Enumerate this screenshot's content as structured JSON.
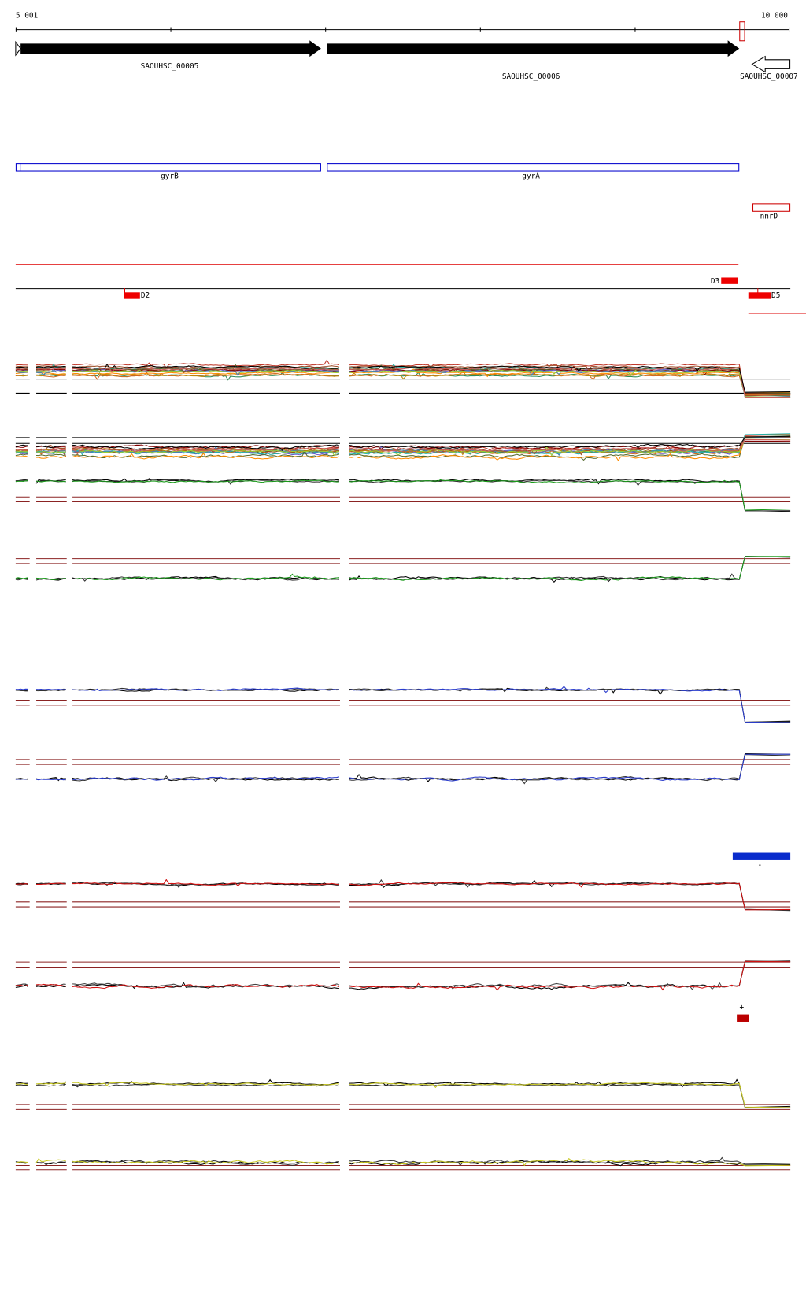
{
  "ruler": {
    "start": "5 001",
    "end": "10 000"
  },
  "genes": [
    {
      "label": "SAOUHSC_00005"
    },
    {
      "label": "SAOUHSC_00006"
    },
    {
      "label": "SAOUHSC_00007"
    }
  ],
  "names": [
    {
      "label": "gyrB"
    },
    {
      "label": "gyrA"
    },
    {
      "label": "nnrD"
    }
  ],
  "features": [
    {
      "label": "D2"
    },
    {
      "label": "D3"
    },
    {
      "label": "D5"
    }
  ],
  "strands": {
    "minus": "-",
    "plus": "+"
  }
}
